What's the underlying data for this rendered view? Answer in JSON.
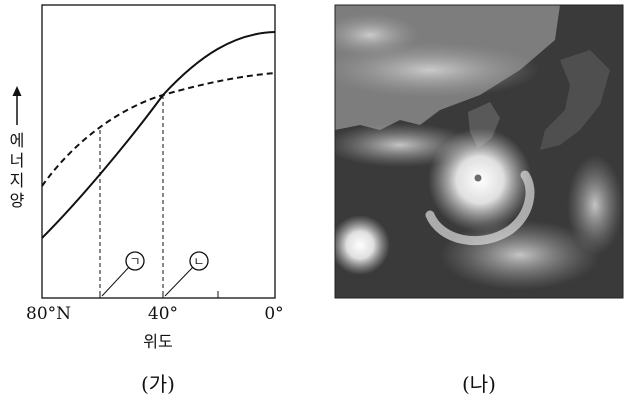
{
  "panel_a": {
    "y_axis_label_chars": [
      "에",
      "너",
      "지",
      "양"
    ],
    "x_tick_labels": [
      "80°N",
      "40°",
      "0°"
    ],
    "x_axis_title": "위도",
    "markers": [
      "ㄱ",
      "ㄴ"
    ],
    "caption": "(가)"
  },
  "panel_b": {
    "caption": "(나)"
  }
}
